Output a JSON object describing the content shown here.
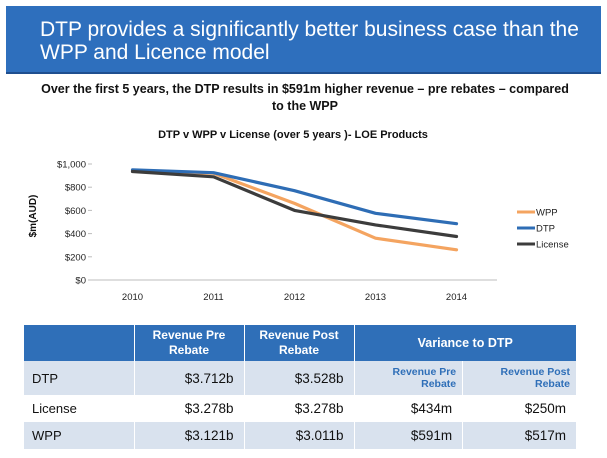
{
  "slide": {
    "title": "DTP provides a significantly better business case than the WPP and Licence model",
    "subtitle": "Over the first 5 years, the DTP results in $591m higher revenue – pre rebates – compared to the WPP"
  },
  "chart_data": {
    "type": "line",
    "title": "DTP v WPP v License (over 5 years )- LOE Products",
    "xlabel": "",
    "ylabel": "$m(AUD)",
    "categories": [
      "2010",
      "2011",
      "2012",
      "2013",
      "2014"
    ],
    "y_ticks": [
      "$0",
      "$200",
      "$400",
      "$600",
      "$800",
      "$1,000"
    ],
    "ylim": [
      0,
      1000
    ],
    "legend_position": "right",
    "series": [
      {
        "name": "WPP",
        "color": "#f4a460",
        "values": [
          940,
          920,
          660,
          360,
          260
        ]
      },
      {
        "name": "DTP",
        "color": "#2e6db5",
        "values": [
          950,
          925,
          770,
          575,
          485
        ]
      },
      {
        "name": "License",
        "color": "#3c3c3c",
        "values": [
          935,
          890,
          600,
          475,
          375
        ]
      }
    ]
  },
  "table": {
    "headers": {
      "rev_pre": "Revenue Pre Rebate",
      "rev_post": "Revenue Post Rebate",
      "variance": "Variance to DTP",
      "var_pre": "Revenue Pre Rebate",
      "var_post": "Revenue Post Rebate"
    },
    "rows": [
      {
        "label": "DTP",
        "pre": "$3.712b",
        "post": "$3.528b",
        "var_pre": "",
        "var_post": ""
      },
      {
        "label": "License",
        "pre": "$3.278b",
        "post": "$3.278b",
        "var_pre": "$434m",
        "var_post": "$250m"
      },
      {
        "label": "WPP",
        "pre": "$3.121b",
        "post": "$3.011b",
        "var_pre": "$591m",
        "var_post": "$517m"
      }
    ]
  }
}
